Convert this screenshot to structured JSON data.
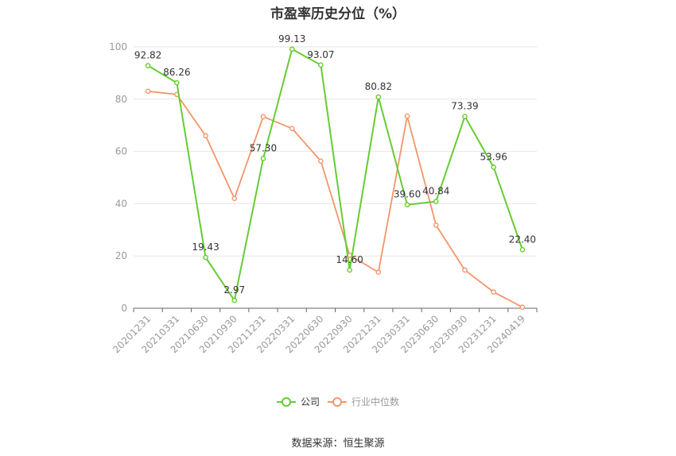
{
  "title": "市盈率历史分位（%）",
  "source": "数据来源：恒生聚源",
  "chart_data": {
    "type": "line",
    "title": "市盈率历史分位（%）",
    "categories": [
      "20201231",
      "20210331",
      "20210630",
      "20210930",
      "20211231",
      "20220331",
      "20220630",
      "20220930",
      "20221231",
      "20230331",
      "20230630",
      "20230930",
      "20231231",
      "20240419"
    ],
    "ylim": [
      0,
      100
    ],
    "yticks": [
      0,
      20,
      40,
      60,
      80,
      100
    ],
    "grid": true,
    "legend": "bottom-center",
    "series": [
      {
        "name": "公司",
        "color": "#66cc33",
        "values": [
          92.82,
          86.26,
          19.43,
          2.97,
          57.3,
          99.13,
          93.07,
          14.6,
          80.82,
          39.6,
          40.84,
          73.39,
          53.96,
          22.4
        ],
        "labels": [
          "92.82",
          "86.26",
          "19.43",
          "2.97",
          "57.30",
          "99.13",
          "93.07",
          "14.60",
          "80.82",
          "39.60",
          "40.84",
          "73.39",
          "53.96",
          "22.40"
        ]
      },
      {
        "name": "行业中位数",
        "color": "#f4956a",
        "values": [
          83.0,
          81.8,
          66.0,
          42.0,
          73.3,
          68.8,
          56.3,
          20.3,
          13.8,
          73.5,
          31.8,
          14.6,
          6.2,
          0.4
        ]
      }
    ]
  }
}
